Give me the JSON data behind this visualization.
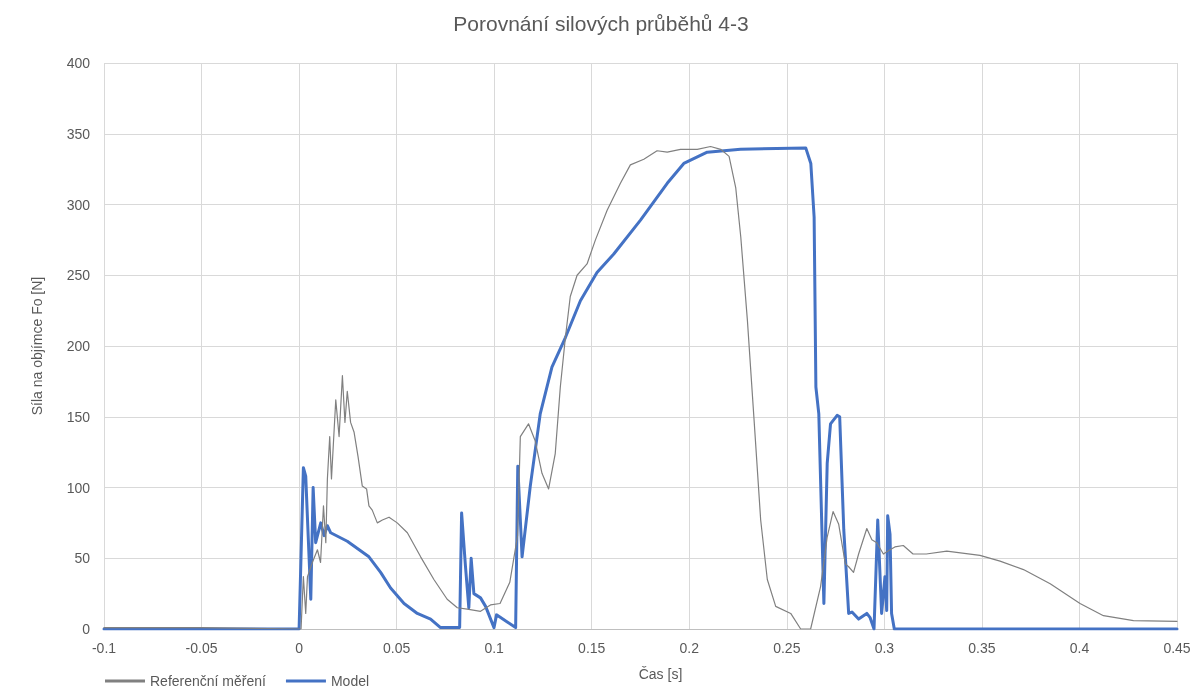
{
  "chart_data": {
    "type": "line",
    "title": "Porovnání silových průběhů 4-3",
    "xlabel": "Čas [s]",
    "ylabel": "Síla na objímce Fo [N]",
    "xlim": [
      -0.1,
      0.45
    ],
    "xticks": [
      -0.1,
      -0.05,
      0,
      0.05,
      0.1,
      0.15,
      0.2,
      0.25,
      0.3,
      0.35,
      0.4,
      0.45
    ],
    "ylim": [
      0,
      400
    ],
    "yticks": [
      0,
      50,
      100,
      150,
      200,
      250,
      300,
      350,
      400
    ],
    "grid": true,
    "legend": "bottom left",
    "marker": "none",
    "line_style": "solid",
    "series": [
      {
        "name": "Referenční měření",
        "color": "#808080",
        "x": [
          -0.1,
          -0.05,
          0,
          0.001,
          0.0022,
          0.0034,
          0.0043,
          0.0068,
          0.0094,
          0.011,
          0.0125,
          0.0137,
          0.0145,
          0.0157,
          0.0166,
          0.0188,
          0.0205,
          0.0222,
          0.0235,
          0.0247,
          0.0264,
          0.0282,
          0.0302,
          0.0324,
          0.0346,
          0.0358,
          0.0375,
          0.0401,
          0.0427,
          0.0461,
          0.0503,
          0.0555,
          0.0623,
          0.0691,
          0.0759,
          0.0811,
          0.0862,
          0.093,
          0.0981,
          0.103,
          0.108,
          0.112,
          0.1134,
          0.1176,
          0.121,
          0.1245,
          0.1279,
          0.1313,
          0.1339,
          0.1365,
          0.139,
          0.1425,
          0.1476,
          0.1519,
          0.1579,
          0.1647,
          0.1698,
          0.1767,
          0.1835,
          0.1887,
          0.1955,
          0.2041,
          0.2109,
          0.2161,
          0.2204,
          0.2238,
          0.2264,
          0.2298,
          0.2332,
          0.2366,
          0.24,
          0.2443,
          0.252,
          0.2571,
          0.2622,
          0.2673,
          0.2707,
          0.2737,
          0.2766,
          0.28,
          0.2817,
          0.2842,
          0.2868,
          0.291,
          0.2936,
          0.2961,
          0.2995,
          0.3029,
          0.3054,
          0.3097,
          0.3147,
          0.3183,
          0.3215,
          0.332,
          0.349,
          0.3593,
          0.3713,
          0.385,
          0.4003,
          0.4123,
          0.4277,
          0.45
        ],
        "values": [
          1,
          1,
          0,
          0,
          37,
          11,
          37,
          47,
          56,
          47,
          87,
          61,
          106,
          136,
          106,
          162,
          136,
          179,
          146,
          168,
          146,
          139,
          122,
          101,
          99,
          87,
          84,
          75,
          77,
          79,
          75,
          68,
          51,
          35,
          21,
          15,
          14,
          12.5,
          17,
          18,
          33,
          66,
          136,
          145,
          133,
          110,
          99,
          124,
          171,
          206,
          235,
          250,
          258,
          275,
          296,
          315,
          328,
          332,
          338,
          337,
          339,
          339,
          341,
          339,
          334,
          312,
          277,
          218,
          148,
          77,
          35,
          16,
          11,
          0,
          0,
          30,
          65,
          83,
          74,
          46,
          44,
          40,
          53,
          71,
          63,
          61,
          53,
          56,
          58,
          59,
          53,
          53,
          53,
          55,
          52,
          48,
          42,
          32,
          18,
          9.4,
          5.9,
          5.4
        ]
      },
      {
        "name": "Model",
        "color": "#4472c4",
        "x": [
          -0.1,
          0,
          0.0022,
          0.0034,
          0.006,
          0.0072,
          0.0085,
          0.0111,
          0.0128,
          0.0145,
          0.0162,
          0.0247,
          0.0358,
          0.0418,
          0.0469,
          0.0538,
          0.0606,
          0.0674,
          0.0725,
          0.0823,
          0.0833,
          0.0853,
          0.087,
          0.0882,
          0.0896,
          0.093,
          0.0956,
          0.0999,
          0.1012,
          0.1067,
          0.111,
          0.1121,
          0.1143,
          0.1185,
          0.1236,
          0.1296,
          0.1365,
          0.1442,
          0.1527,
          0.1613,
          0.175,
          0.1887,
          0.1972,
          0.2092,
          0.2263,
          0.2597,
          0.2623,
          0.264,
          0.2649,
          0.2664,
          0.269,
          0.2707,
          0.2724,
          0.2758,
          0.2771,
          0.2792,
          0.2817,
          0.2834,
          0.2868,
          0.291,
          0.2927,
          0.2947,
          0.2966,
          0.2986,
          0.3003,
          0.3012,
          0.3017,
          0.3029,
          0.3037,
          0.3051,
          0.3232,
          0.45
        ],
        "values": [
          0,
          0,
          114,
          108,
          21,
          100,
          61,
          75,
          66,
          73,
          68,
          62,
          51,
          40,
          29,
          18,
          11,
          7,
          1,
          1,
          82,
          44,
          15,
          50,
          25,
          22,
          16,
          1,
          10,
          5,
          1,
          115,
          51,
          101,
          152,
          185,
          206,
          232,
          252,
          265,
          289,
          315,
          329,
          337,
          339,
          340,
          329,
          291,
          171,
          152,
          18,
          117,
          145,
          151,
          150,
          70,
          11,
          12,
          7,
          11,
          8,
          0,
          77,
          11,
          37,
          13,
          80,
          67,
          11,
          0,
          0,
          0
        ]
      }
    ]
  }
}
